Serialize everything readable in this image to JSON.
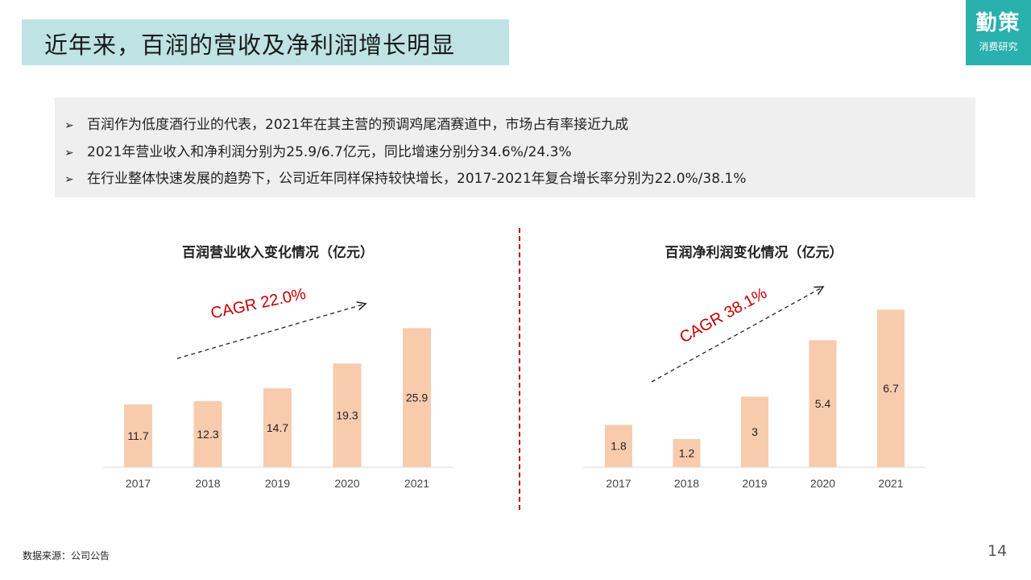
{
  "header": {
    "title": "近年来，百润的营收及净利润增长明显",
    "logo_main": "勤策",
    "logo_sub": "消费研究"
  },
  "bullets": [
    "百润作为低度酒行业的代表，2021年在其主营的预调鸡尾酒赛道中，市场占有率接近九成",
    "2021年营业收入和净利润分别为25.9/6.7亿元，同比增速分别分34.6%/24.3%",
    "在行业整体快速发展的趋势下，公司近年同样保持较快增长，2017-2021年复合增长率分别为22.0%/38.1%"
  ],
  "bullet_marker": "➢",
  "footer": {
    "source": "数据来源：公司公告",
    "page": "14"
  },
  "colors": {
    "bar": "#f8cbad",
    "accent": "#c00000",
    "title_bg": "#bfe3e4",
    "logo_bg": "#2ab0ad"
  },
  "chart_data": [
    {
      "type": "bar",
      "title": "百润营业收入变化情况（亿元）",
      "categories": [
        "2017",
        "2018",
        "2019",
        "2020",
        "2021"
      ],
      "values": [
        11.7,
        12.3,
        14.7,
        19.3,
        25.9
      ],
      "annotation": "CAGR 22.0%",
      "ylim": [
        0,
        30
      ],
      "grid": false,
      "legend": "none"
    },
    {
      "type": "bar",
      "title": "百润净利润变化情况（亿元）",
      "categories": [
        "2017",
        "2018",
        "2019",
        "2020",
        "2021"
      ],
      "values": [
        1.8,
        1.2,
        3.0,
        5.4,
        6.7
      ],
      "annotation": "CAGR 38.1%",
      "ylim": [
        0,
        7.5
      ],
      "grid": false,
      "legend": "none"
    }
  ]
}
